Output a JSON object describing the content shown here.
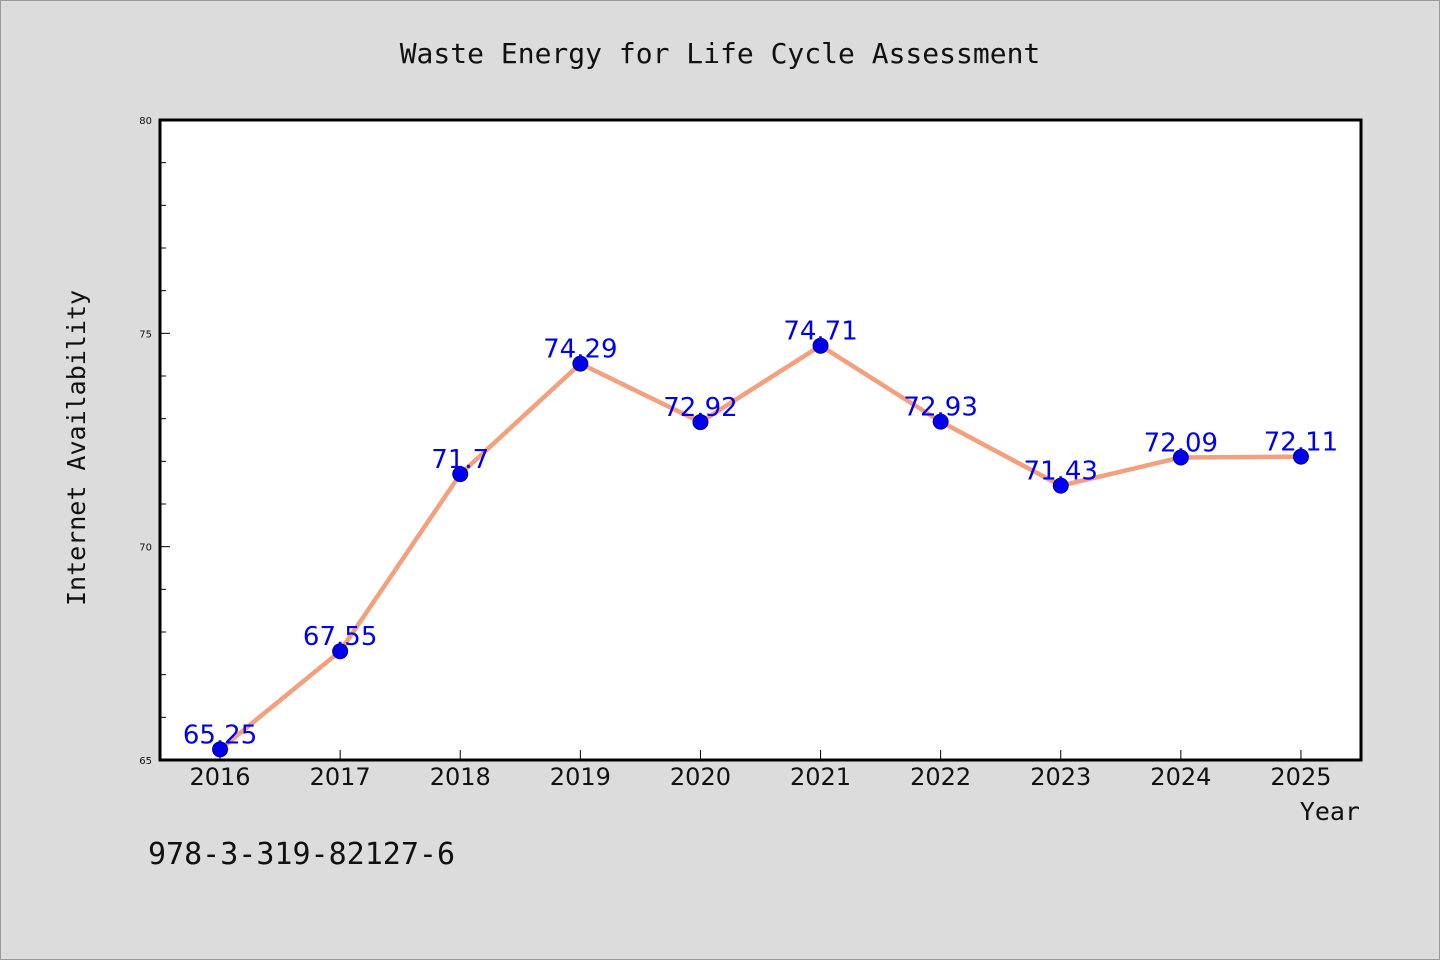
{
  "chart_data": {
    "type": "line",
    "title": "Waste Energy for Life Cycle Assessment",
    "xlabel": "Year",
    "ylabel": "Internet Availability",
    "x": [
      "2016",
      "2017",
      "2018",
      "2019",
      "2020",
      "2021",
      "2022",
      "2023",
      "2024",
      "2025"
    ],
    "series": [
      {
        "values": [
          65.25,
          67.55,
          71.7,
          74.29,
          72.92,
          74.71,
          72.93,
          71.43,
          72.09,
          72.11
        ],
        "labels": [
          "65.25",
          "67.55",
          "71.7",
          "74.29",
          "72.92",
          "74.71",
          "72.93",
          "71.43",
          "72.09",
          "72.11"
        ]
      }
    ],
    "ylim": [
      65,
      80
    ],
    "yticks": [
      "65",
      "70",
      "75",
      "80"
    ],
    "grid": false,
    "colors": {
      "line": "#f4a07e",
      "marker": "#0000ee",
      "label": "#0000ee",
      "plot_bg": "#ffffff",
      "page_bg": "#dcdcdc"
    }
  },
  "footer": {
    "isbn": "978-3-319-82127-6"
  }
}
